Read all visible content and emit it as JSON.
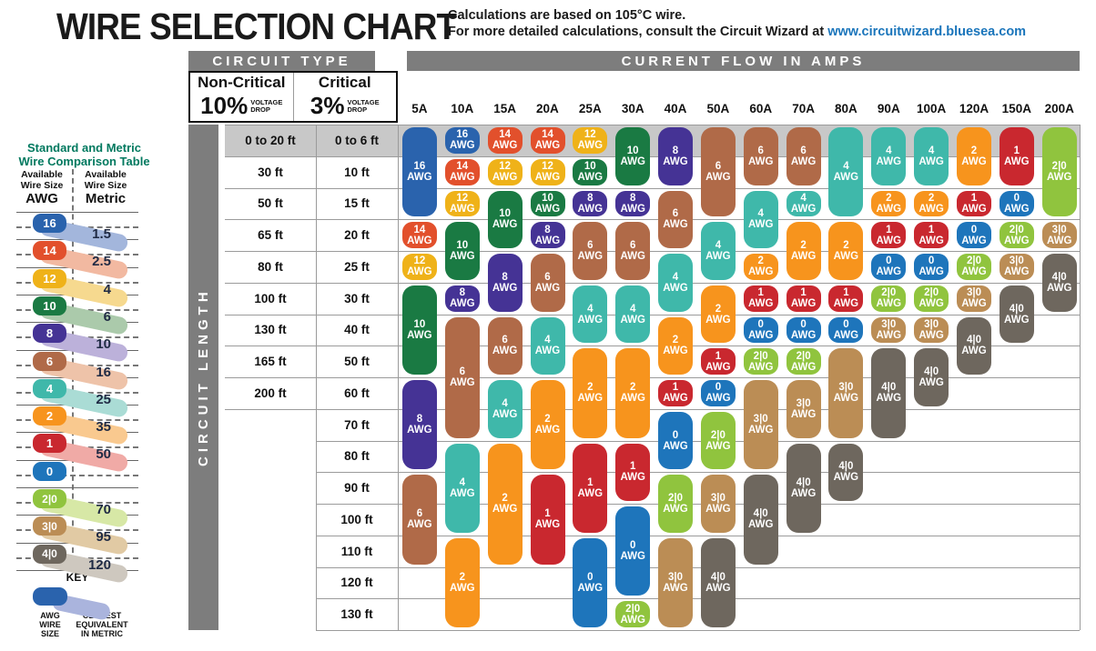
{
  "title": "WIRE SELECTION CHART",
  "note_line1": "Calculations are based on 105°C wire.",
  "note_line2": "For more detailed calculations, consult the Circuit Wizard at",
  "note_link": "www.circuitwizard.bluesea.com",
  "header": {
    "circuit_type": "CIRCUIT TYPE",
    "current_flow": "CURRENT FLOW IN AMPS",
    "circuit_length": "CIRCUIT LENGTH",
    "non_critical": "Non-Critical",
    "non_critical_pct": "10%",
    "critical": "Critical",
    "critical_pct": "3%",
    "voltage": "VOLTAGE",
    "drop": "DROP"
  },
  "sidebar": {
    "title_line1": "Standard and Metric",
    "title_line2": "Wire Comparison Table",
    "col1_line1": "Available",
    "col1_line2": "Wire Size",
    "col1_unit": "AWG",
    "col2_line1": "Available",
    "col2_line2": "Wire Size",
    "col2_unit": "Metric",
    "rows": [
      {
        "awg": "16",
        "metric": "1.5"
      },
      {
        "awg": "14",
        "metric": "2.5"
      },
      {
        "awg": "12",
        "metric": "4"
      },
      {
        "awg": "10",
        "metric": "6"
      },
      {
        "awg": "8",
        "metric": "10"
      },
      {
        "awg": "6",
        "metric": "16"
      },
      {
        "awg": "4",
        "metric": "25"
      },
      {
        "awg": "2",
        "metric": "35"
      },
      {
        "awg": "1",
        "metric": "50"
      },
      {
        "awg": "0",
        "metric": ""
      },
      {
        "awg": "2|0",
        "metric": "70"
      },
      {
        "awg": "3|0",
        "metric": "95"
      },
      {
        "awg": "4|0",
        "metric": "120"
      }
    ],
    "key": {
      "title": "KEY",
      "left_label": [
        "AWG",
        "WIRE",
        "SIZE"
      ],
      "right_label": [
        "CLOSEST",
        "EQUIVALENT",
        "IN METRIC"
      ]
    }
  },
  "colors": {
    "header_gray": "#7d7d7d",
    "row1_band": "#c8c8c8",
    "grid": "#9b9b9b",
    "link_blue": "#1a75bb",
    "sidebar_title_green": "#00795f",
    "awg": {
      "16": "#2a63ad",
      "14": "#e2502c",
      "12": "#efb219",
      "10": "#1a7a43",
      "8": "#453395",
      "6": "#b06a48",
      "4": "#3fb8aa",
      "2": "#f7941d",
      "1": "#c9282f",
      "0": "#1e75bb",
      "2|0": "#90c43e",
      "3|0": "#bb8d55",
      "4|0": "#6e675e"
    },
    "awg_tint": {
      "16": "#a3b6dc",
      "14": "#f2b9a1",
      "12": "#f6d98f",
      "10": "#abcaab",
      "8": "#bcb1da",
      "6": "#eec3a9",
      "4": "#aadcd5",
      "2": "#f9c98f",
      "1": "#f0aaa6",
      "0": "#a9c4e2",
      "2|0": "#d7e8a6",
      "3|0": "#e1caa4",
      "4|0": "#cec8bf"
    },
    "key_tint": "#aab4dd"
  },
  "chart_data": {
    "type": "table",
    "title": "WIRE SELECTION CHART",
    "x_axis": "Current flow in amps",
    "y_axis": "Circuit length (non-critical 10% voltage drop / critical 3% voltage drop)",
    "amps": [
      "5A",
      "10A",
      "15A",
      "20A",
      "25A",
      "30A",
      "40A",
      "50A",
      "60A",
      "70A",
      "80A",
      "90A",
      "100A",
      "120A",
      "150A",
      "200A"
    ],
    "length_rows": [
      {
        "non_critical": "0 to 20 ft",
        "critical": "0 to 6 ft"
      },
      {
        "non_critical": "30 ft",
        "critical": "10 ft"
      },
      {
        "non_critical": "50 ft",
        "critical": "15 ft"
      },
      {
        "non_critical": "65 ft",
        "critical": "20 ft"
      },
      {
        "non_critical": "80 ft",
        "critical": "25 ft"
      },
      {
        "non_critical": "100 ft",
        "critical": "30 ft"
      },
      {
        "non_critical": "130 ft",
        "critical": "40 ft"
      },
      {
        "non_critical": "165 ft",
        "critical": "50 ft"
      },
      {
        "non_critical": "200 ft",
        "critical": "60 ft"
      },
      {
        "non_critical": "",
        "critical": "70 ft"
      },
      {
        "non_critical": "",
        "critical": "80 ft"
      },
      {
        "non_critical": "",
        "critical": "90 ft"
      },
      {
        "non_critical": "",
        "critical": "100 ft"
      },
      {
        "non_critical": "",
        "critical": "110 ft"
      },
      {
        "non_critical": "",
        "critical": "120 ft"
      },
      {
        "non_critical": "",
        "critical": "130 ft"
      }
    ],
    "unit_suffix": "AWG",
    "columns": [
      {
        "amp": "5A",
        "segments": [
          {
            "awg": "16",
            "from": 1,
            "to": 3
          },
          {
            "awg": "14",
            "from": 4,
            "to": 4
          },
          {
            "awg": "12",
            "from": 5,
            "to": 5
          },
          {
            "awg": "10",
            "from": 6,
            "to": 8
          },
          {
            "awg": "8",
            "from": 9,
            "to": 11
          },
          {
            "awg": "6",
            "from": 12,
            "to": 14
          }
        ]
      },
      {
        "amp": "10A",
        "segments": [
          {
            "awg": "16",
            "from": 1,
            "to": 1
          },
          {
            "awg": "14",
            "from": 2,
            "to": 2
          },
          {
            "awg": "12",
            "from": 3,
            "to": 3
          },
          {
            "awg": "10",
            "from": 4,
            "to": 5
          },
          {
            "awg": "8",
            "from": 6,
            "to": 6
          },
          {
            "awg": "6",
            "from": 7,
            "to": 10
          },
          {
            "awg": "4",
            "from": 11,
            "to": 13
          },
          {
            "awg": "2",
            "from": 14,
            "to": 16
          }
        ]
      },
      {
        "amp": "15A",
        "segments": [
          {
            "awg": "14",
            "from": 1,
            "to": 1
          },
          {
            "awg": "12",
            "from": 2,
            "to": 2
          },
          {
            "awg": "10",
            "from": 3,
            "to": 4
          },
          {
            "awg": "8",
            "from": 5,
            "to": 6
          },
          {
            "awg": "6",
            "from": 7,
            "to": 8
          },
          {
            "awg": "4",
            "from": 9,
            "to": 10
          },
          {
            "awg": "2",
            "from": 11,
            "to": 14
          }
        ]
      },
      {
        "amp": "20A",
        "segments": [
          {
            "awg": "14",
            "from": 1,
            "to": 1
          },
          {
            "awg": "12",
            "from": 2,
            "to": 2
          },
          {
            "awg": "10",
            "from": 3,
            "to": 3
          },
          {
            "awg": "8",
            "from": 4,
            "to": 4
          },
          {
            "awg": "6",
            "from": 5,
            "to": 6
          },
          {
            "awg": "4",
            "from": 7,
            "to": 8
          },
          {
            "awg": "2",
            "from": 9,
            "to": 11
          },
          {
            "awg": "1",
            "from": 12,
            "to": 14
          }
        ]
      },
      {
        "amp": "25A",
        "segments": [
          {
            "awg": "12",
            "from": 1,
            "to": 1
          },
          {
            "awg": "10",
            "from": 2,
            "to": 2
          },
          {
            "awg": "8",
            "from": 3,
            "to": 3
          },
          {
            "awg": "6",
            "from": 4,
            "to": 5
          },
          {
            "awg": "4",
            "from": 6,
            "to": 7
          },
          {
            "awg": "2",
            "from": 8,
            "to": 10
          },
          {
            "awg": "1",
            "from": 11,
            "to": 13
          },
          {
            "awg": "0",
            "from": 14,
            "to": 16
          }
        ]
      },
      {
        "amp": "30A",
        "segments": [
          {
            "awg": "10",
            "from": 1,
            "to": 2
          },
          {
            "awg": "8",
            "from": 3,
            "to": 3
          },
          {
            "awg": "6",
            "from": 4,
            "to": 5
          },
          {
            "awg": "4",
            "from": 6,
            "to": 7
          },
          {
            "awg": "2",
            "from": 8,
            "to": 10
          },
          {
            "awg": "1",
            "from": 11,
            "to": 12
          },
          {
            "awg": "0",
            "from": 13,
            "to": 15
          },
          {
            "awg": "2|0",
            "from": 16,
            "to": 16
          }
        ]
      },
      {
        "amp": "40A",
        "segments": [
          {
            "awg": "8",
            "from": 1,
            "to": 2
          },
          {
            "awg": "6",
            "from": 3,
            "to": 4
          },
          {
            "awg": "4",
            "from": 5,
            "to": 6
          },
          {
            "awg": "2",
            "from": 7,
            "to": 8
          },
          {
            "awg": "1",
            "from": 9,
            "to": 9
          },
          {
            "awg": "0",
            "from": 10,
            "to": 11
          },
          {
            "awg": "2|0",
            "from": 12,
            "to": 13
          },
          {
            "awg": "3|0",
            "from": 14,
            "to": 16
          }
        ]
      },
      {
        "amp": "50A",
        "segments": [
          {
            "awg": "6",
            "from": 1,
            "to": 3
          },
          {
            "awg": "4",
            "from": 4,
            "to": 5
          },
          {
            "awg": "2",
            "from": 6,
            "to": 7
          },
          {
            "awg": "1",
            "from": 8,
            "to": 8
          },
          {
            "awg": "0",
            "from": 9,
            "to": 9
          },
          {
            "awg": "2|0",
            "from": 10,
            "to": 11
          },
          {
            "awg": "3|0",
            "from": 12,
            "to": 13
          },
          {
            "awg": "4|0",
            "from": 14,
            "to": 16
          }
        ]
      },
      {
        "amp": "60A",
        "segments": [
          {
            "awg": "6",
            "from": 1,
            "to": 2
          },
          {
            "awg": "4",
            "from": 3,
            "to": 4
          },
          {
            "awg": "2",
            "from": 5,
            "to": 5
          },
          {
            "awg": "1",
            "from": 6,
            "to": 6
          },
          {
            "awg": "0",
            "from": 7,
            "to": 7
          },
          {
            "awg": "2|0",
            "from": 8,
            "to": 8
          },
          {
            "awg": "3|0",
            "from": 9,
            "to": 11
          },
          {
            "awg": "4|0",
            "from": 12,
            "to": 14
          }
        ]
      },
      {
        "amp": "70A",
        "segments": [
          {
            "awg": "6",
            "from": 1,
            "to": 2
          },
          {
            "awg": "4",
            "from": 3,
            "to": 3
          },
          {
            "awg": "2",
            "from": 4,
            "to": 5
          },
          {
            "awg": "1",
            "from": 6,
            "to": 6
          },
          {
            "awg": "0",
            "from": 7,
            "to": 7
          },
          {
            "awg": "2|0",
            "from": 8,
            "to": 8
          },
          {
            "awg": "3|0",
            "from": 9,
            "to": 10
          },
          {
            "awg": "4|0",
            "from": 11,
            "to": 13
          }
        ]
      },
      {
        "amp": "80A",
        "segments": [
          {
            "awg": "4",
            "from": 1,
            "to": 3
          },
          {
            "awg": "2",
            "from": 4,
            "to": 5
          },
          {
            "awg": "1",
            "from": 6,
            "to": 6
          },
          {
            "awg": "0",
            "from": 7,
            "to": 7
          },
          {
            "awg": "3|0",
            "from": 8,
            "to": 10
          },
          {
            "awg": "4|0",
            "from": 11,
            "to": 12
          }
        ]
      },
      {
        "amp": "90A",
        "segments": [
          {
            "awg": "4",
            "from": 1,
            "to": 2
          },
          {
            "awg": "2",
            "from": 3,
            "to": 3
          },
          {
            "awg": "1",
            "from": 4,
            "to": 4
          },
          {
            "awg": "0",
            "from": 5,
            "to": 5
          },
          {
            "awg": "2|0",
            "from": 6,
            "to": 6
          },
          {
            "awg": "3|0",
            "from": 7,
            "to": 7
          },
          {
            "awg": "4|0",
            "from": 8,
            "to": 10
          }
        ]
      },
      {
        "amp": "100A",
        "segments": [
          {
            "awg": "4",
            "from": 1,
            "to": 2
          },
          {
            "awg": "2",
            "from": 3,
            "to": 3
          },
          {
            "awg": "1",
            "from": 4,
            "to": 4
          },
          {
            "awg": "0",
            "from": 5,
            "to": 5
          },
          {
            "awg": "2|0",
            "from": 6,
            "to": 6
          },
          {
            "awg": "3|0",
            "from": 7,
            "to": 7
          },
          {
            "awg": "4|0",
            "from": 8,
            "to": 9
          }
        ]
      },
      {
        "amp": "120A",
        "segments": [
          {
            "awg": "2",
            "from": 1,
            "to": 2
          },
          {
            "awg": "1",
            "from": 3,
            "to": 3
          },
          {
            "awg": "0",
            "from": 4,
            "to": 4
          },
          {
            "awg": "2|0",
            "from": 5,
            "to": 5
          },
          {
            "awg": "3|0",
            "from": 6,
            "to": 6
          },
          {
            "awg": "4|0",
            "from": 7,
            "to": 8
          }
        ]
      },
      {
        "amp": "150A",
        "segments": [
          {
            "awg": "1",
            "from": 1,
            "to": 2
          },
          {
            "awg": "0",
            "from": 3,
            "to": 3
          },
          {
            "awg": "2|0",
            "from": 4,
            "to": 4
          },
          {
            "awg": "3|0",
            "from": 5,
            "to": 5
          },
          {
            "awg": "4|0",
            "from": 6,
            "to": 7
          }
        ]
      },
      {
        "amp": "200A",
        "segments": [
          {
            "awg": "2|0",
            "from": 1,
            "to": 3
          },
          {
            "awg": "3|0",
            "from": 4,
            "to": 4
          },
          {
            "awg": "4|0",
            "from": 5,
            "to": 6
          }
        ]
      }
    ]
  }
}
